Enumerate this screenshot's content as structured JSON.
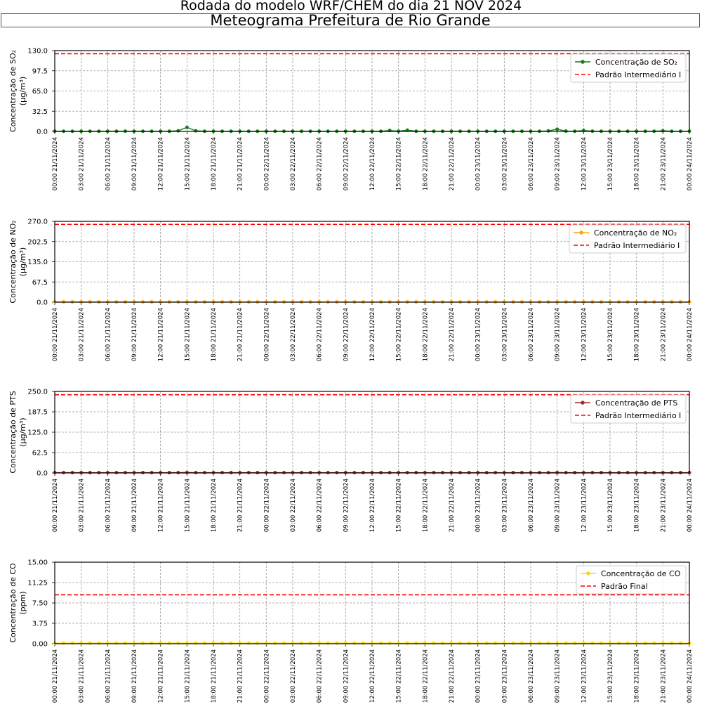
{
  "header": {
    "suptitle": "Rodada do modelo WRF/CHEM do dia 21 NOV 2024",
    "title": "Meteograma Prefeitura de Rio Grande"
  },
  "x_tick_labels": [
    "00:00 21/11/2024",
    "03:00 21/11/2024",
    "06:00 21/11/2024",
    "09:00 21/11/2024",
    "12:00 21/11/2024",
    "15:00 21/11/2024",
    "18:00 21/11/2024",
    "21:00 21/11/2024",
    "00:00 22/11/2024",
    "03:00 22/11/2024",
    "06:00 22/11/2024",
    "09:00 22/11/2024",
    "12:00 22/11/2024",
    "15:00 22/11/2024",
    "18:00 22/11/2024",
    "21:00 22/11/2024",
    "00:00 23/11/2024",
    "03:00 23/11/2024",
    "06:00 23/11/2024",
    "09:00 23/11/2024",
    "12:00 23/11/2024",
    "15:00 23/11/2024",
    "18:00 23/11/2024",
    "21:00 23/11/2024",
    "00:00 24/11/2024"
  ],
  "colors": {
    "threshold": "#ff0000",
    "grid": "#9a9a9a"
  },
  "chart_data": [
    {
      "type": "line",
      "ylabel": "Concentração de SO₂",
      "yunit": "(μg/m³)",
      "ylim": [
        0,
        130
      ],
      "yticks": [
        "0.0",
        "32.5",
        "65.0",
        "97.5",
        "130.0"
      ],
      "grid": true,
      "legend_position": "top-right",
      "x_start": "00:00 21/11/2024",
      "x_end": "00:00 24/11/2024",
      "x_step": "1h",
      "series": [
        {
          "name": "Concentração de SO₂",
          "color": "#1a7a1a",
          "values": [
            0.3,
            0.3,
            0.3,
            0.3,
            0.3,
            0.3,
            0.3,
            0.3,
            0.4,
            0.3,
            0.3,
            0.3,
            0.3,
            0.3,
            1.0,
            6.5,
            1.0,
            0.3,
            0.3,
            0.3,
            0.3,
            0.3,
            0.3,
            0.3,
            0.3,
            0.3,
            0.3,
            0.3,
            0.3,
            0.3,
            0.3,
            0.3,
            0.3,
            0.3,
            0.3,
            0.3,
            0.3,
            0.3,
            1.5,
            0.3,
            2.0,
            0.3,
            0.3,
            0.3,
            0.3,
            0.3,
            0.3,
            0.3,
            0.3,
            0.3,
            0.3,
            0.3,
            0.3,
            0.3,
            0.3,
            0.3,
            0.8,
            3.5,
            0.5,
            0.3,
            1.5,
            0.4,
            0.3,
            0.3,
            0.3,
            0.3,
            0.3,
            0.3,
            0.3,
            1.0,
            0.3,
            0.3,
            0.3
          ]
        }
      ],
      "threshold": {
        "name": "Padrão Intermediário I",
        "value": 125
      }
    },
    {
      "type": "line",
      "ylabel": "Concentração de NO₂",
      "yunit": "(μg/m³)",
      "ylim": [
        0,
        270
      ],
      "yticks": [
        "0.0",
        "67.5",
        "135.0",
        "202.5",
        "270.0"
      ],
      "grid": true,
      "legend_position": "top-right",
      "x_start": "00:00 21/11/2024",
      "x_end": "00:00 24/11/2024",
      "x_step": "1h",
      "series": [
        {
          "name": "Concentração de NO₂",
          "color": "#ffa500",
          "values": [
            1.0,
            1.0,
            1.0,
            1.0,
            1.0,
            1.0,
            1.0,
            1.0,
            1.0,
            1.0,
            1.0,
            1.0,
            1.0,
            1.0,
            1.0,
            1.0,
            1.0,
            1.0,
            1.0,
            1.0,
            1.0,
            1.0,
            1.0,
            1.0,
            1.0,
            1.0,
            1.0,
            1.0,
            1.0,
            1.0,
            1.0,
            1.0,
            1.0,
            1.0,
            1.0,
            1.0,
            1.0,
            1.0,
            1.0,
            1.0,
            1.0,
            1.0,
            1.0,
            1.0,
            1.0,
            1.0,
            1.0,
            1.0,
            1.0,
            1.0,
            1.0,
            1.0,
            1.0,
            1.0,
            1.0,
            1.0,
            1.0,
            1.0,
            1.0,
            1.0,
            1.0,
            1.0,
            1.0,
            1.0,
            1.0,
            1.0,
            1.0,
            1.0,
            1.0,
            1.0,
            1.0,
            1.0,
            1.0
          ]
        }
      ],
      "threshold": {
        "name": "Padrão Intermediário I",
        "value": 260
      }
    },
    {
      "type": "line",
      "ylabel": "Concentração de PTS",
      "yunit": "(μg/m³)",
      "ylim": [
        0,
        250
      ],
      "yticks": [
        "0.0",
        "62.5",
        "125.0",
        "187.5",
        "250.0"
      ],
      "grid": true,
      "legend_position": "top-right",
      "x_start": "00:00 21/11/2024",
      "x_end": "00:00 24/11/2024",
      "x_step": "1h",
      "series": [
        {
          "name": "Concentração de PTS",
          "color": "#a52a2a",
          "values": [
            1.0,
            1.0,
            1.0,
            1.0,
            1.0,
            1.0,
            1.0,
            1.0,
            1.0,
            1.0,
            1.0,
            1.0,
            1.0,
            1.0,
            1.0,
            1.5,
            1.0,
            1.0,
            1.0,
            1.0,
            1.0,
            1.0,
            1.0,
            1.0,
            1.0,
            1.0,
            1.0,
            1.0,
            1.0,
            1.0,
            1.0,
            1.0,
            1.0,
            1.0,
            1.0,
            1.0,
            1.0,
            1.0,
            1.0,
            1.0,
            1.0,
            1.0,
            1.0,
            1.0,
            1.0,
            1.0,
            1.0,
            1.0,
            1.0,
            1.0,
            1.0,
            1.0,
            1.0,
            1.0,
            1.0,
            1.0,
            1.0,
            1.5,
            1.0,
            1.0,
            1.0,
            1.0,
            1.0,
            1.0,
            1.0,
            1.0,
            1.0,
            1.0,
            1.0,
            1.0,
            1.0,
            1.0,
            1.0
          ]
        }
      ],
      "threshold": {
        "name": "Padrão Intermediário I",
        "value": 240
      }
    },
    {
      "type": "line",
      "ylabel": "Concentração de CO",
      "yunit": "(ppm)",
      "ylim": [
        0,
        15
      ],
      "yticks": [
        "0.00",
        "3.75",
        "7.50",
        "11.25",
        "15.00"
      ],
      "grid": true,
      "legend_position": "top-right",
      "x_start": "00:00 21/11/2024",
      "x_end": "00:00 24/11/2024",
      "x_step": "1h",
      "series": [
        {
          "name": "Concentração de CO",
          "color": "#ffd700",
          "values": [
            0.1,
            0.1,
            0.1,
            0.1,
            0.1,
            0.1,
            0.1,
            0.1,
            0.1,
            0.1,
            0.1,
            0.1,
            0.1,
            0.1,
            0.1,
            0.1,
            0.1,
            0.1,
            0.1,
            0.1,
            0.1,
            0.1,
            0.1,
            0.1,
            0.1,
            0.1,
            0.1,
            0.1,
            0.1,
            0.1,
            0.1,
            0.1,
            0.1,
            0.1,
            0.1,
            0.1,
            0.1,
            0.1,
            0.1,
            0.1,
            0.1,
            0.1,
            0.1,
            0.1,
            0.1,
            0.1,
            0.1,
            0.1,
            0.1,
            0.1,
            0.1,
            0.1,
            0.1,
            0.1,
            0.1,
            0.1,
            0.1,
            0.1,
            0.1,
            0.1,
            0.1,
            0.1,
            0.1,
            0.1,
            0.1,
            0.1,
            0.1,
            0.1,
            0.1,
            0.1,
            0.1,
            0.1,
            0.1
          ]
        }
      ],
      "threshold": {
        "name": "Padrão Final",
        "value": 9
      }
    }
  ]
}
